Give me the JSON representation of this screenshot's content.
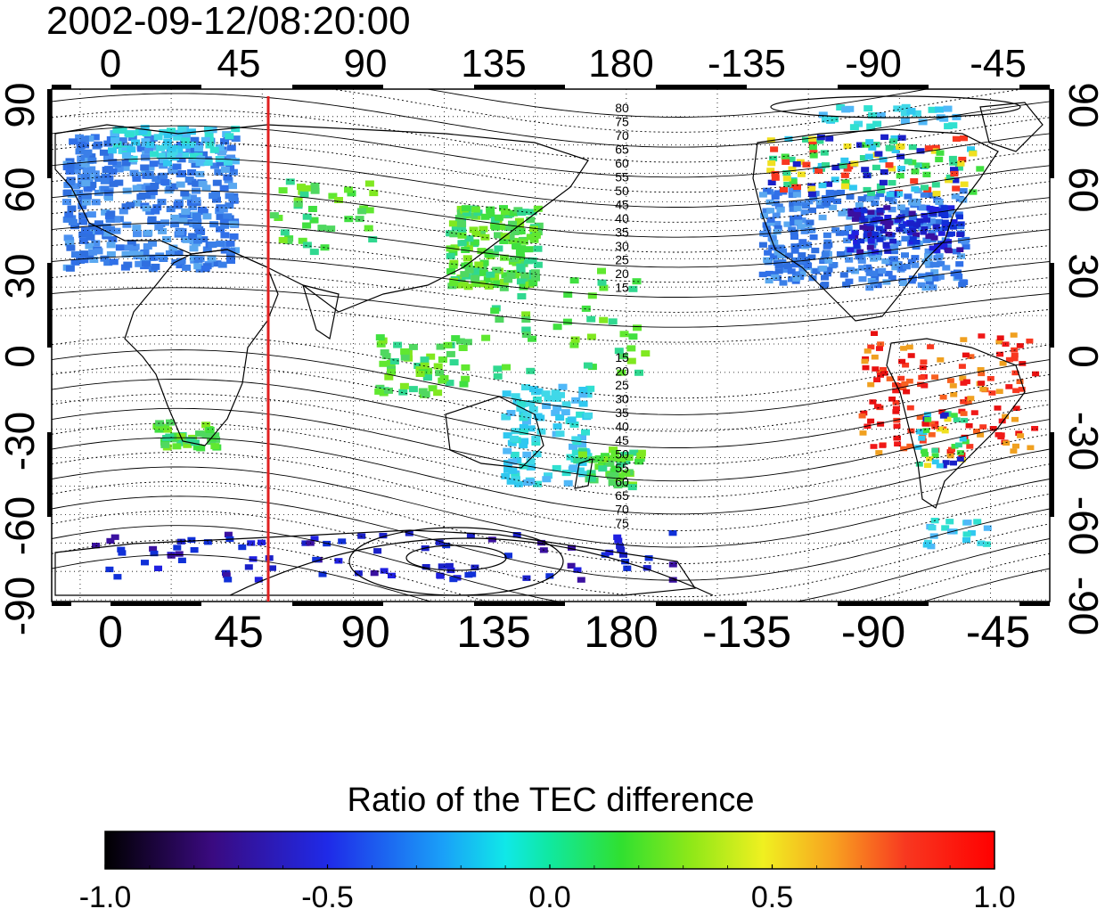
{
  "title": "2002-09-12/08:20:00",
  "map": {
    "lon_ticks": [
      "0",
      "45",
      "90",
      "135",
      "180",
      "-135",
      "-90",
      "-45"
    ],
    "lat_ticks": [
      "90",
      "60",
      "30",
      "0",
      "-30",
      "-60",
      "-90"
    ],
    "meridian_marker": {
      "longitude": 57,
      "color": "#e02020"
    },
    "contour_labels_north": [
      "80",
      "75",
      "70",
      "65",
      "60",
      "55",
      "50",
      "45",
      "40",
      "35",
      "30",
      "25",
      "20",
      "15"
    ],
    "contour_labels_south": [
      "15",
      "20",
      "25",
      "30",
      "35",
      "40",
      "45",
      "50",
      "55",
      "60",
      "65",
      "70",
      "75"
    ]
  },
  "colorbar": {
    "title": "Ratio of the TEC difference",
    "ticks": [
      "-1.0",
      "-0.5",
      "0.0",
      "0.5",
      "1.0"
    ],
    "range": [
      -1.0,
      1.0
    ]
  },
  "data_clusters": [
    {
      "region": "europe",
      "color": "#3a7fe8"
    },
    {
      "region": "europe-north",
      "color": "#4aa0f0"
    },
    {
      "region": "east-asia",
      "color": "#5ad84a"
    },
    {
      "region": "north-america",
      "color": "#2a6ef0"
    },
    {
      "region": "north-america-east",
      "color": "#1a2ac8"
    },
    {
      "region": "south-america",
      "color": "#f01818"
    },
    {
      "region": "australia",
      "color": "#30d0e0"
    },
    {
      "region": "antarctic",
      "color": "#2020e0"
    }
  ]
}
